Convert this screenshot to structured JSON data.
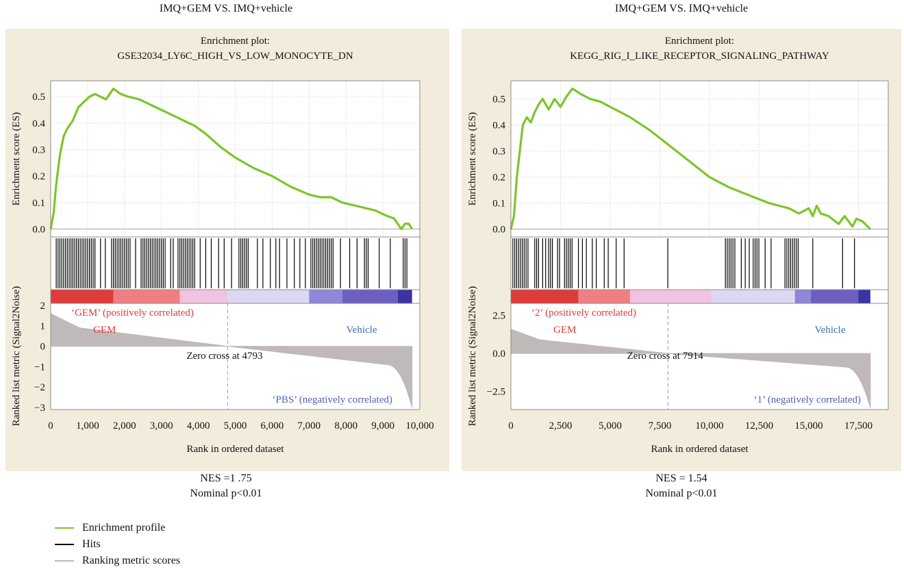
{
  "colors": {
    "panel_bg": "#f2ecdd",
    "enrichment": "#7cc529",
    "hits": "#000000",
    "ranking": "#bfb9b9",
    "positive": "#e03a3a",
    "negative": "#4d5fb8",
    "vehicle_text": "#3b6fb5"
  },
  "chart_data": [
    {
      "type": "line",
      "panel_title": "IMQ+GEM VS. IMQ+vehicle",
      "title_line1": "Enrichment plot:",
      "title_line2": "GSE32034_LY6C_HIGH_VS_LOW_MONOCYTE_DN",
      "ylabel_top": "Enrichment score (ES)",
      "ylabel_bottom": "Ranked list metric (Signal2Noise)",
      "xlabel": "Rank in ordered dataset",
      "xlim": [
        0,
        10000
      ],
      "xticks": [
        0,
        1000,
        2000,
        3000,
        4000,
        5000,
        6000,
        7000,
        8000,
        9000,
        10000
      ],
      "xtick_labels": [
        "0",
        "1,000",
        "2,000",
        "3,000",
        "4,000",
        "5,000",
        "6,000",
        "7,000",
        "8,000",
        "9,000",
        "10,000"
      ],
      "es_ylim": [
        -0.03,
        0.56
      ],
      "es_yticks": [
        0.0,
        0.1,
        0.2,
        0.3,
        0.4,
        0.5
      ],
      "es_ytick_labels": [
        "0.0",
        "0.1",
        "0.2",
        "0.3",
        "0.4",
        "0.5"
      ],
      "enrichment_profile": {
        "x": [
          0,
          80,
          150,
          250,
          350,
          450,
          600,
          750,
          900,
          1050,
          1200,
          1350,
          1500,
          1700,
          1900,
          2100,
          2400,
          2700,
          3000,
          3300,
          3600,
          3900,
          4200,
          4600,
          5000,
          5500,
          6000,
          6500,
          7000,
          7300,
          7600,
          7900,
          8200,
          8500,
          8800,
          9100,
          9300,
          9500,
          9600,
          9700,
          9790
        ],
        "y": [
          0.0,
          0.06,
          0.17,
          0.28,
          0.35,
          0.38,
          0.41,
          0.46,
          0.48,
          0.5,
          0.51,
          0.5,
          0.49,
          0.53,
          0.51,
          0.5,
          0.49,
          0.47,
          0.45,
          0.43,
          0.41,
          0.39,
          0.36,
          0.31,
          0.27,
          0.23,
          0.2,
          0.16,
          0.13,
          0.12,
          0.12,
          0.1,
          0.09,
          0.08,
          0.07,
          0.05,
          0.04,
          0.0,
          0.02,
          0.02,
          0.0
        ]
      },
      "hit_blocks": [
        [
          150,
          1200
        ],
        [
          1650,
          2150
        ],
        [
          2450,
          3100
        ],
        [
          3450,
          3900
        ],
        [
          5100,
          5350
        ],
        [
          7050,
          7650
        ],
        [
          8500,
          8600
        ],
        [
          9550,
          9650
        ]
      ],
      "hit_singles": [
        1350,
        1480,
        2300,
        3250,
        3320,
        4050,
        4200,
        4350,
        4550,
        4700,
        4900,
        5600,
        5750,
        5950,
        6100,
        6200,
        6400,
        6600,
        6750,
        6900,
        7850,
        8100,
        8300,
        8900,
        9200
      ],
      "heatmap": [
        {
          "from": 0,
          "to": 1700,
          "color": "#de3b3b"
        },
        {
          "from": 1700,
          "to": 3500,
          "color": "#f07f83"
        },
        {
          "from": 3500,
          "to": 4800,
          "color": "#f2c2e0"
        },
        {
          "from": 4800,
          "to": 7000,
          "color": "#dcd8f4"
        },
        {
          "from": 7000,
          "to": 7900,
          "color": "#8e86d9"
        },
        {
          "from": 7900,
          "to": 9400,
          "color": "#6d5ec2"
        },
        {
          "from": 9400,
          "to": 9790,
          "color": "#3b33a3"
        }
      ],
      "rank_ylim": [
        -3.1,
        2.1
      ],
      "rank_yticks": [
        2,
        1,
        0,
        -1,
        -2,
        -3
      ],
      "rank_ytick_labels": [
        "2",
        "1",
        "0",
        "−1",
        "−2",
        "−3"
      ],
      "rank_n": 9790,
      "rank_metric_shape": {
        "start": 1.6,
        "knee": 0.9,
        "end": -3.0
      },
      "zero_cross_x": 4793,
      "zero_cross_label": "Zero cross at 4793",
      "pos_label": "‘GEM’ (positively correlated)",
      "neg_label": "‘PBS’ (negatively correlated)",
      "pos_group": "GEM",
      "neg_group": "Vehicle",
      "nes_label": "NES =1 .75",
      "p_label": "Nominal p<0.01"
    },
    {
      "type": "line",
      "panel_title": "IMQ+GEM VS. IMQ+vehicle",
      "title_line1": "Enrichment plot:",
      "title_line2": "KEGG_RIG_I_LIKE_RECEPTOR_SIGNALING_PATHWAY",
      "ylabel_top": "Enrichment score (ES)",
      "ylabel_bottom": "Ranked list metric (Signal2Noise)",
      "xlabel": "Rank in ordered dataset",
      "xlim": [
        0,
        19000
      ],
      "xticks": [
        0,
        2500,
        5000,
        7500,
        10000,
        12500,
        15000,
        17500
      ],
      "xtick_labels": [
        "0",
        "2,500",
        "5,000",
        "7,500",
        "10,000",
        "12,500",
        "15,000",
        "17,500"
      ],
      "es_ylim": [
        -0.03,
        0.57
      ],
      "es_yticks": [
        0.0,
        0.1,
        0.2,
        0.3,
        0.4,
        0.5
      ],
      "es_ytick_labels": [
        "0.0",
        "0.1",
        "0.2",
        "0.3",
        "0.4",
        "0.5"
      ],
      "enrichment_profile": {
        "x": [
          0,
          150,
          300,
          450,
          600,
          800,
          1000,
          1200,
          1400,
          1600,
          1900,
          2200,
          2500,
          2800,
          3100,
          3500,
          4000,
          4500,
          5000,
          5500,
          6000,
          7000,
          8000,
          9000,
          10000,
          11000,
          12000,
          13000,
          14000,
          14500,
          15000,
          15200,
          15400,
          15600,
          16000,
          16500,
          16800,
          17200,
          17400,
          17700,
          18100
        ],
        "y": [
          0.0,
          0.05,
          0.2,
          0.3,
          0.4,
          0.43,
          0.41,
          0.45,
          0.48,
          0.5,
          0.46,
          0.5,
          0.47,
          0.51,
          0.54,
          0.52,
          0.5,
          0.49,
          0.47,
          0.45,
          0.43,
          0.38,
          0.32,
          0.26,
          0.2,
          0.16,
          0.13,
          0.1,
          0.08,
          0.06,
          0.08,
          0.05,
          0.09,
          0.06,
          0.05,
          0.02,
          0.05,
          0.01,
          0.04,
          0.03,
          0.0
        ]
      },
      "hit_blocks": [
        [
          100,
          900
        ],
        [
          1200,
          1400
        ],
        [
          1900,
          2100
        ],
        [
          2700,
          3100
        ],
        [
          10800,
          11300
        ],
        [
          12200,
          12500
        ],
        [
          13800,
          14500
        ]
      ],
      "hit_singles": [
        1600,
        1750,
        2350,
        2450,
        3400,
        3600,
        3800,
        4100,
        4300,
        4700,
        4900,
        5300,
        5700,
        7900,
        11600,
        11800,
        12000,
        12800,
        13100,
        15200,
        16700,
        17300
      ],
      "heatmap": [
        {
          "from": 0,
          "to": 3400,
          "color": "#de3b3b"
        },
        {
          "from": 3400,
          "to": 6000,
          "color": "#f07f83"
        },
        {
          "from": 6000,
          "to": 10100,
          "color": "#f2c2e0"
        },
        {
          "from": 10100,
          "to": 14300,
          "color": "#dcd8f4"
        },
        {
          "from": 14300,
          "to": 15100,
          "color": "#8e86d9"
        },
        {
          "from": 15100,
          "to": 17500,
          "color": "#6d5ec2"
        },
        {
          "from": 17500,
          "to": 18100,
          "color": "#3b33a3"
        }
      ],
      "rank_ylim": [
        -3.7,
        3.3
      ],
      "rank_yticks": [
        2.5,
        0.0,
        -2.5
      ],
      "rank_ytick_labels": [
        "2.5",
        "0.0",
        "−2.5"
      ],
      "rank_n": 18100,
      "rank_metric_shape": {
        "start": 1.6,
        "knee": 0.9,
        "end": -3.6
      },
      "zero_cross_x": 7914,
      "zero_cross_label": "Zero cross at 7914",
      "pos_label": "‘2’ (positively correlated)",
      "neg_label": "‘1’ (negatively correlated)",
      "pos_group": "GEM",
      "neg_group": "Vehicle",
      "nes_label": "NES = 1.54",
      "p_label": "Nominal p<0.01"
    }
  ],
  "legend": [
    {
      "label": "Enrichment profile",
      "color": "#7cc529"
    },
    {
      "label": "Hits",
      "color": "#000000"
    },
    {
      "label": "Ranking metric scores",
      "color": "#bfb9b9"
    }
  ]
}
